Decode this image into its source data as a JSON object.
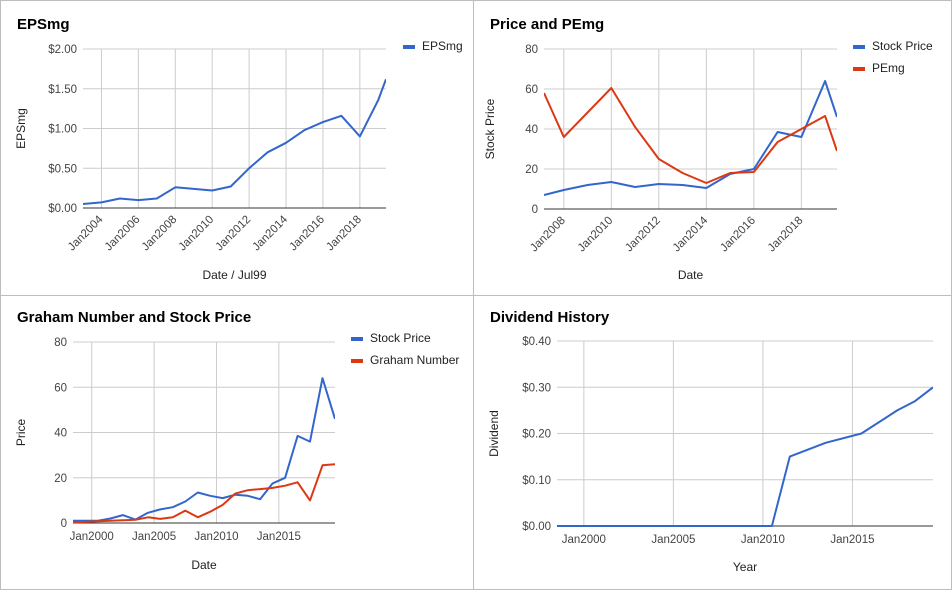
{
  "colors": {
    "blue": "#3366cc",
    "red": "#dc3912",
    "grid": "#cccccc",
    "axis": "#333333"
  },
  "chart_data": [
    {
      "type": "line",
      "title": "EPSmg",
      "xlabel": "Date / Jul99",
      "ylabel": "EPSmg",
      "x_axis": "date",
      "xlim": [
        "2003-01",
        "2019-06"
      ],
      "ylim": [
        0,
        2
      ],
      "y_ticks": [
        "$0.00",
        "$0.50",
        "$1.00",
        "$1.50",
        "$2.00"
      ],
      "y_tick_values": [
        0,
        0.5,
        1,
        1.5,
        2
      ],
      "x_ticks": [
        "Jan2004",
        "Jan2006",
        "Jan2008",
        "Jan2010",
        "Jan2012",
        "Jan2014",
        "Jan2016",
        "Jan2018"
      ],
      "x_tick_values": [
        "2004-01",
        "2006-01",
        "2008-01",
        "2010-01",
        "2012-01",
        "2014-01",
        "2016-01",
        "2018-01"
      ],
      "grid": true,
      "legend": "right",
      "series": [
        {
          "name": "EPSmg",
          "color": "#3366cc",
          "x": [
            "2003-01",
            "2004-01",
            "2005-01",
            "2006-01",
            "2007-01",
            "2008-01",
            "2009-01",
            "2010-01",
            "2011-01",
            "2012-01",
            "2013-01",
            "2014-01",
            "2015-01",
            "2016-01",
            "2017-01",
            "2018-01",
            "2019-01",
            "2019-06"
          ],
          "y": [
            0.05,
            0.07,
            0.12,
            0.1,
            0.12,
            0.26,
            0.24,
            0.22,
            0.27,
            0.5,
            0.7,
            0.82,
            0.98,
            1.08,
            1.16,
            0.9,
            1.36,
            1.62
          ]
        }
      ]
    },
    {
      "type": "line",
      "title": "Price and PEmg",
      "xlabel": "Date",
      "ylabel": "Stock Price",
      "x_axis": "date",
      "xlim": [
        "2007-03",
        "2019-07"
      ],
      "ylim": [
        0,
        80
      ],
      "y_ticks": [
        "0",
        "20",
        "40",
        "60",
        "80"
      ],
      "y_tick_values": [
        0,
        20,
        40,
        60,
        80
      ],
      "x_ticks": [
        "Jan2008",
        "Jan2010",
        "Jan2012",
        "Jan2014",
        "Jan2016",
        "Jan2018"
      ],
      "x_tick_values": [
        "2008-01",
        "2010-01",
        "2012-01",
        "2014-01",
        "2016-01",
        "2018-01"
      ],
      "grid": true,
      "legend": "right",
      "series": [
        {
          "name": "Stock Price",
          "color": "#3366cc",
          "x": [
            "2007-03",
            "2008-01",
            "2009-01",
            "2010-01",
            "2011-01",
            "2012-01",
            "2013-01",
            "2014-01",
            "2015-01",
            "2016-01",
            "2017-01",
            "2018-01",
            "2019-01",
            "2019-07"
          ],
          "y": [
            7,
            9.5,
            12,
            13.5,
            11,
            12.5,
            12,
            10.5,
            17.5,
            20,
            38.5,
            36,
            64,
            46
          ]
        },
        {
          "name": "PEmg",
          "color": "#dc3912",
          "x": [
            "2007-03",
            "2008-01",
            "2010-01",
            "2011-01",
            "2012-01",
            "2013-01",
            "2014-01",
            "2015-01",
            "2016-01",
            "2017-01",
            "2018-01",
            "2019-01",
            "2019-07"
          ],
          "y": [
            58,
            36,
            60.5,
            41,
            25,
            18,
            13,
            18,
            18.5,
            33.5,
            40,
            46.5,
            29
          ]
        }
      ]
    },
    {
      "type": "line",
      "title": "Graham Number and Stock Price",
      "xlabel": "Date",
      "ylabel": "Price",
      "x_axis": "date",
      "xlim": [
        "1998-07",
        "2019-07"
      ],
      "ylim": [
        0,
        80
      ],
      "y_ticks": [
        "0",
        "20",
        "40",
        "60",
        "80"
      ],
      "y_tick_values": [
        0,
        20,
        40,
        60,
        80
      ],
      "x_ticks": [
        "Jan2000",
        "Jan2005",
        "Jan2010",
        "Jan2015"
      ],
      "x_tick_values": [
        "2000-01",
        "2005-01",
        "2010-01",
        "2015-01"
      ],
      "grid": true,
      "legend": "right",
      "series": [
        {
          "name": "Stock Price",
          "color": "#3366cc",
          "x": [
            "1998-07",
            "1999-07",
            "2000-07",
            "2001-07",
            "2002-07",
            "2003-07",
            "2004-07",
            "2005-07",
            "2006-07",
            "2007-07",
            "2008-07",
            "2009-07",
            "2010-07",
            "2011-07",
            "2012-07",
            "2013-07",
            "2014-07",
            "2015-07",
            "2016-07",
            "2017-07",
            "2018-07",
            "2019-07"
          ],
          "y": [
            1,
            1,
            1,
            2,
            3.5,
            1.5,
            4.5,
            6,
            7,
            9.5,
            13.5,
            12,
            11,
            12.5,
            12,
            10.5,
            17.5,
            20,
            38.5,
            36,
            64,
            46
          ]
        },
        {
          "name": "Graham Number",
          "color": "#dc3912",
          "x": [
            "1998-07",
            "1999-07",
            "2000-07",
            "2001-07",
            "2002-07",
            "2003-07",
            "2004-07",
            "2005-07",
            "2006-07",
            "2007-07",
            "2008-07",
            "2009-07",
            "2010-07",
            "2011-07",
            "2012-07",
            "2013-07",
            "2014-07",
            "2015-07",
            "2016-07",
            "2017-07",
            "2018-07",
            "2019-07"
          ],
          "y": [
            0.3,
            0.5,
            0.8,
            1,
            1.2,
            1.4,
            2.5,
            1.8,
            2.5,
            5.5,
            2.5,
            5,
            8,
            13,
            14.5,
            15,
            15.5,
            16.5,
            18,
            10,
            25.5,
            26
          ]
        }
      ]
    },
    {
      "type": "line",
      "title": "Dividend History",
      "xlabel": "Year",
      "ylabel": "Dividend",
      "x_axis": "date",
      "xlim": [
        "1998-07",
        "2019-07"
      ],
      "ylim": [
        0,
        0.4
      ],
      "y_ticks": [
        "$0.00",
        "$0.10",
        "$0.20",
        "$0.30",
        "$0.40"
      ],
      "y_tick_values": [
        0,
        0.1,
        0.2,
        0.3,
        0.4
      ],
      "x_ticks": [
        "Jan2000",
        "Jan2005",
        "Jan2010",
        "Jan2015"
      ],
      "x_tick_values": [
        "2000-01",
        "2005-01",
        "2010-01",
        "2015-01"
      ],
      "grid": true,
      "legend": "none",
      "series": [
        {
          "name": "",
          "color": "#3366cc",
          "x": [
            "1998-07",
            "2010-07",
            "2011-07",
            "2013-07",
            "2015-07",
            "2017-07",
            "2018-07",
            "2019-07"
          ],
          "y": [
            0,
            0,
            0.15,
            0.18,
            0.2,
            0.25,
            0.27,
            0.3
          ]
        }
      ]
    }
  ]
}
